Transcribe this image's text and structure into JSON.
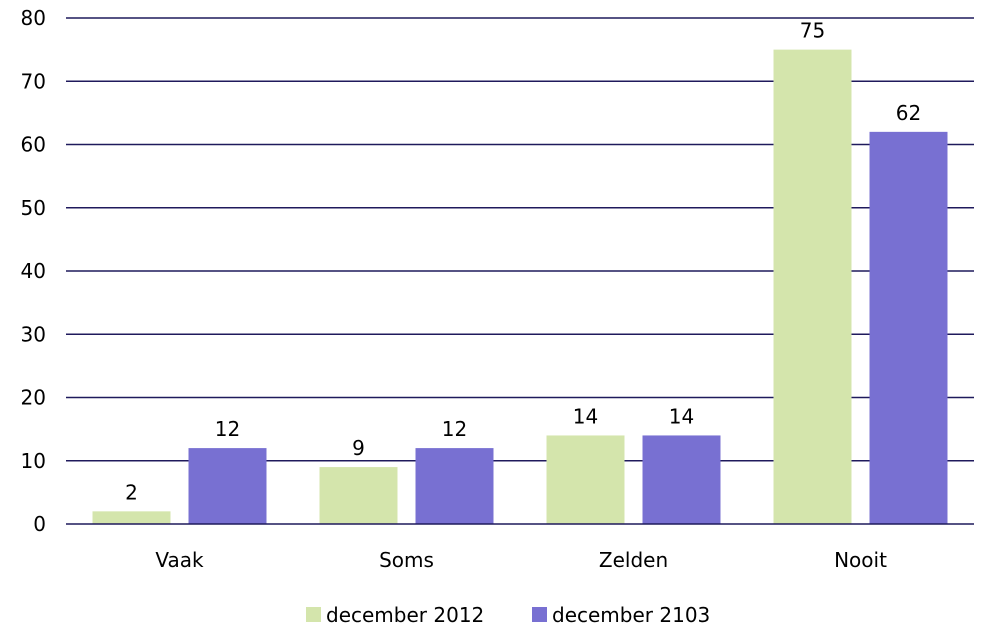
{
  "chart_data": {
    "type": "bar",
    "title": "",
    "xlabel": "",
    "ylabel": "",
    "categories": [
      "Vaak",
      "Soms",
      "Zelden",
      "Nooit"
    ],
    "series": [
      {
        "name": "december 2012",
        "values": [
          2,
          9,
          14,
          75
        ],
        "color": "#d4e5ac"
      },
      {
        "name": "december 2103",
        "values": [
          12,
          12,
          14,
          62
        ],
        "color": "#7870d2"
      }
    ],
    "ylim": [
      0,
      80
    ],
    "yticks": [
      0,
      10,
      20,
      30,
      40,
      50,
      60,
      70,
      80
    ],
    "grid": true,
    "gridline_color": "#1f1a5c",
    "data_labels": true,
    "legend_position": "bottom"
  }
}
